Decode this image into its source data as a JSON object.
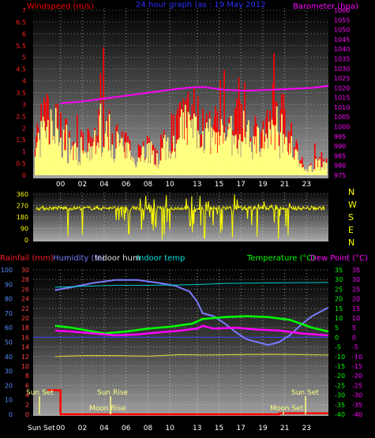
{
  "top_panel": {
    "title": "24 hour graph (as : 19 May 2012",
    "left_label": "Windspeed (m/s)",
    "right_label": "Barometer (hpa)"
  },
  "dir_panel": {
    "compass": [
      "N",
      "W",
      "S",
      "E",
      "N"
    ]
  },
  "bottom_panel": {
    "labels": {
      "rainfall": "Rainfall (mm)",
      "humidity": "Humidity (%)",
      "indoor_hum": "Indoor hum",
      "indoor_temp": "Indoor temp",
      "temperature": "Temperature (°C)",
      "dew_point": "Dew Point (°C)"
    },
    "events": {
      "sun_set_left": "Sun Set",
      "sun_rise": "Sun Rise",
      "moon_rise": "Moon Rise",
      "sun_set_right": "Sun Set",
      "moon_set": "Moon Set",
      "sun_set_bottom": "Sun Set"
    }
  },
  "colors": {
    "wind": "#ff0000",
    "gust": "#ffff80",
    "barometer": "#ff00ff",
    "direction": "#ffff00",
    "rain": "#ff0000",
    "humidity": "#7a7aff",
    "indoor_temp": "#00cccc",
    "temperature": "#00ff00",
    "dew_point": "#ff00ff",
    "indoor_hum": "#cccc40"
  },
  "chart_data": [
    {
      "type": "bar",
      "title": "24 hour graph (as : 19 May 2012",
      "x_ticks": [
        "00",
        "02",
        "04",
        "06",
        "08",
        "10",
        "13",
        "15",
        "17",
        "19",
        "21",
        "23"
      ],
      "y_left": {
        "label": "Windspeed (m/s)",
        "ticks": [
          "0",
          "0.5",
          "1",
          "1.5",
          "2",
          "2.5",
          "3",
          "3.5",
          "4",
          "4.5",
          "5",
          "5.5",
          "6",
          "6.5",
          "7"
        ],
        "range": [
          0,
          7
        ]
      },
      "y_right": {
        "label": "Barometer (hpa)",
        "ticks": [
          "975",
          "980",
          "985",
          "990",
          "995",
          "1000",
          "1005",
          "1010",
          "1015",
          "1020",
          "1025",
          "1030",
          "1035",
          "1040",
          "1045",
          "1050",
          "1055",
          "1060"
        ],
        "range": [
          975,
          1060
        ]
      },
      "series": [
        {
          "name": "Windspeed",
          "envelope": [
            2.5,
            3.5,
            3.8,
            3.0,
            2.5,
            1.8,
            2.0,
            2.0,
            3.5,
            3.0,
            2.5,
            2.0,
            1.5,
            1.8,
            2.0,
            1.0,
            2.5,
            3.0,
            3.5,
            4.0,
            3.8,
            3.0,
            2.5,
            3.0,
            3.5,
            3.5,
            4.0,
            3.0,
            2.5,
            3.0,
            3.5,
            3.0,
            2.0,
            0.5,
            0.5,
            1.0,
            1.0
          ]
        },
        {
          "name": "Barometer",
          "x": [
            0,
            2,
            4,
            6,
            8,
            10,
            11.5,
            13,
            15,
            17,
            19,
            21,
            23,
            24.5
          ],
          "y": [
            1012,
            1013,
            1014.5,
            1016,
            1017.5,
            1019,
            1020,
            1020.5,
            1019,
            1018.5,
            1019,
            1019.5,
            1020,
            1021
          ]
        }
      ]
    },
    {
      "type": "line",
      "y_ticks": [
        "0",
        "90",
        "180",
        "270",
        "360"
      ],
      "range": [
        0,
        360
      ],
      "series": [
        {
          "name": "Wind direction",
          "mean": 250
        }
      ]
    },
    {
      "type": "line",
      "labels": [
        "Rainfall (mm)",
        "Humidity (%)",
        "Indoor hum",
        "Indoor temp",
        "Temperature (°C)",
        "Dew Point (°C)"
      ],
      "x_ticks": [
        "00",
        "02",
        "04",
        "06",
        "08",
        "10",
        "13",
        "15",
        "17",
        "19",
        "21",
        "23"
      ],
      "y_axes": {
        "humidity": [
          "0",
          "10",
          "20",
          "30",
          "40",
          "50",
          "60",
          "70",
          "80",
          "90",
          "100"
        ],
        "rain": [
          "0",
          "2",
          "4",
          "6",
          "8",
          "10",
          "12",
          "14",
          "16",
          "18",
          "20",
          "22",
          "24",
          "26",
          "28",
          "30"
        ],
        "temperature": [
          "-40",
          "-35",
          "-30",
          "-25",
          "-20",
          "-15",
          "-10",
          "-5",
          "0",
          "5",
          "10",
          "15",
          "20",
          "25",
          "30",
          "35"
        ],
        "dew_point": [
          "-40",
          "-35",
          "-30",
          "-25",
          "-20",
          "-15",
          "-10",
          "-5",
          "0",
          "5",
          "10",
          "15",
          "20",
          "25",
          "30",
          "35"
        ]
      },
      "series": [
        {
          "name": "Humidity (%)",
          "x": [
            -0.5,
            1,
            3,
            5,
            7,
            9,
            10.5,
            11.8,
            12.5,
            13,
            14,
            15,
            16,
            17,
            18,
            19,
            20,
            21,
            22,
            23,
            24.5
          ],
          "y": [
            86,
            88,
            91,
            93,
            93,
            91,
            89,
            85,
            78,
            70,
            68,
            63,
            57,
            52,
            50,
            48,
            50,
            55,
            62,
            68,
            74
          ]
        },
        {
          "name": "Indoor temp",
          "x": [
            -0.5,
            2,
            5,
            8,
            11,
            13,
            15,
            18,
            21,
            24.5
          ],
          "y": [
            26,
            26.5,
            27,
            27,
            27.2,
            27.5,
            28,
            28.2,
            28.3,
            28.5
          ]
        },
        {
          "name": "Temperature (°C)",
          "x": [
            -0.5,
            1,
            2,
            3,
            4,
            6,
            8,
            10,
            12,
            13,
            15,
            17,
            19,
            21,
            22,
            23,
            24.5
          ],
          "y": [
            6,
            5,
            4,
            3,
            2,
            3,
            4.5,
            5.5,
            7,
            9.5,
            10.5,
            11,
            10.5,
            9,
            7,
            5,
            3
          ]
        },
        {
          "name": "Dew Point (°C)",
          "x": [
            -0.5,
            1,
            3,
            5,
            7,
            9,
            11,
            12.5,
            13,
            14,
            16,
            18,
            20,
            22,
            24.5
          ],
          "y": [
            3.5,
            3,
            2,
            1,
            1.5,
            2.5,
            3.5,
            4.5,
            6,
            4.5,
            5,
            4,
            3.5,
            2,
            1
          ]
        },
        {
          "name": "Indoor hum",
          "x": [
            -0.5,
            2,
            5,
            8,
            11,
            13,
            16,
            19,
            22,
            24.5
          ],
          "y": [
            -10,
            -9.5,
            -9.5,
            -9.8,
            -9,
            -9.2,
            -9,
            -8.8,
            -9,
            -9.2
          ]
        },
        {
          "name": "Rainfall (mm)",
          "x": [
            -1.2,
            0,
            0,
            13,
            13,
            20,
            20,
            24.5
          ],
          "y": [
            5,
            5,
            0,
            0,
            0,
            0,
            0.2,
            0.2
          ]
        }
      ]
    }
  ]
}
